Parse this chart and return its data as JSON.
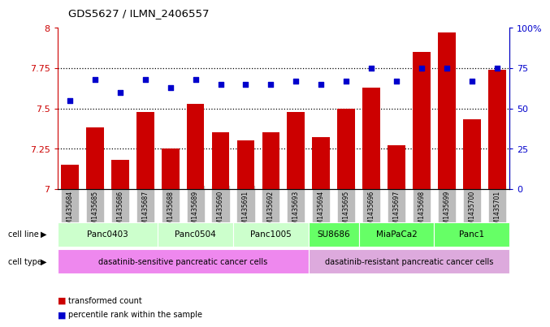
{
  "title": "GDS5627 / ILMN_2406557",
  "samples": [
    "GSM1435684",
    "GSM1435685",
    "GSM1435686",
    "GSM1435687",
    "GSM1435688",
    "GSM1435689",
    "GSM1435690",
    "GSM1435691",
    "GSM1435692",
    "GSM1435693",
    "GSM1435694",
    "GSM1435695",
    "GSM1435696",
    "GSM1435697",
    "GSM1435698",
    "GSM1435699",
    "GSM1435700",
    "GSM1435701"
  ],
  "transformed_count": [
    7.15,
    7.38,
    7.18,
    7.48,
    7.25,
    7.53,
    7.35,
    7.3,
    7.35,
    7.48,
    7.32,
    7.5,
    7.63,
    7.27,
    7.85,
    7.97,
    7.43,
    7.74
  ],
  "percentile_rank": [
    55,
    68,
    60,
    68,
    63,
    68,
    65,
    65,
    65,
    67,
    65,
    67,
    75,
    67,
    75,
    75,
    67,
    75
  ],
  "ylim_left": [
    7.0,
    8.0
  ],
  "ylim_right": [
    0,
    100
  ],
  "yticks_left": [
    7.0,
    7.25,
    7.5,
    7.75,
    8.0
  ],
  "ytick_labels_left": [
    "7",
    "7.25",
    "7.5",
    "7.75",
    "8"
  ],
  "yticks_right": [
    0,
    25,
    50,
    75,
    100
  ],
  "ytick_labels_right": [
    "0",
    "25",
    "50",
    "75",
    "100%"
  ],
  "grid_lines": [
    7.25,
    7.5,
    7.75
  ],
  "bar_color": "#cc0000",
  "dot_color": "#0000cc",
  "bar_width": 0.7,
  "cell_lines": [
    {
      "label": "Panc0403",
      "start": 0,
      "end": 3,
      "color": "#ccffcc"
    },
    {
      "label": "Panc0504",
      "start": 4,
      "end": 6,
      "color": "#ccffcc"
    },
    {
      "label": "Panc1005",
      "start": 7,
      "end": 9,
      "color": "#ccffcc"
    },
    {
      "label": "SU8686",
      "start": 10,
      "end": 11,
      "color": "#66ff66"
    },
    {
      "label": "MiaPaCa2",
      "start": 12,
      "end": 14,
      "color": "#66ff66"
    },
    {
      "label": "Panc1",
      "start": 15,
      "end": 17,
      "color": "#66ff66"
    }
  ],
  "cell_type_groups": [
    {
      "label": "dasatinib-sensitive pancreatic cancer cells",
      "start": 0,
      "end": 9,
      "color": "#ee88ee"
    },
    {
      "label": "dasatinib-resistant pancreatic cancer cells",
      "start": 10,
      "end": 17,
      "color": "#ddaadd"
    }
  ],
  "legend_items": [
    {
      "label": "transformed count",
      "color": "#cc0000"
    },
    {
      "label": "percentile rank within the sample",
      "color": "#0000cc"
    }
  ],
  "background_color": "#ffffff",
  "tick_bg_color": "#bbbbbb"
}
